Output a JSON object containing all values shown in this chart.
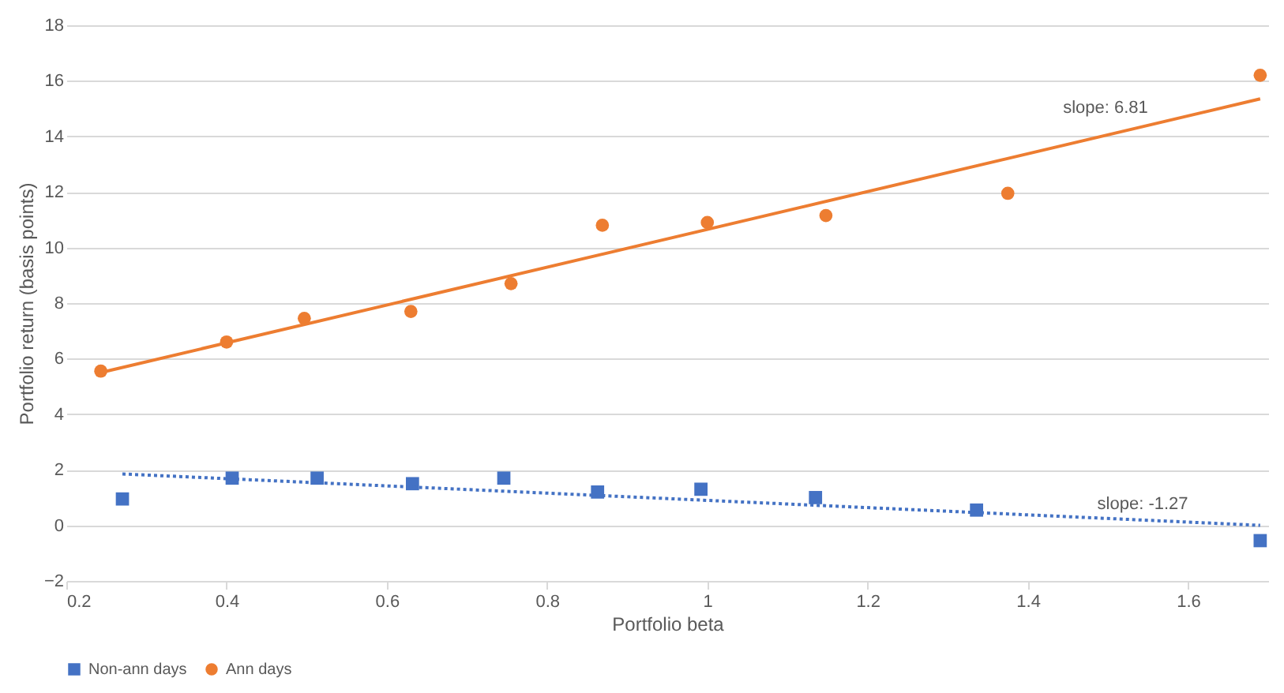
{
  "chart_data": {
    "type": "scatter",
    "xlabel": "Portfolio beta",
    "ylabel": "Portfolio return (basis points)",
    "xlim": [
      0.2,
      1.7
    ],
    "xticks": [
      0.2,
      0.4,
      0.6,
      0.8,
      1,
      1.2,
      1.4,
      1.6
    ],
    "ylim": [
      -2,
      18
    ],
    "yticks": [
      -2,
      0,
      2,
      4,
      6,
      8,
      10,
      12,
      14,
      16,
      18
    ],
    "grid": "y",
    "legend": "bottom",
    "series": [
      {
        "name": "Non-ann days",
        "color": "#4472c4",
        "marker": "square",
        "x": [
          0.27,
          0.407,
          0.513,
          0.632,
          0.746,
          0.863,
          0.992,
          1.135,
          1.336,
          1.69
        ],
        "values": [
          0.95,
          1.7,
          1.7,
          1.5,
          1.7,
          1.2,
          1.3,
          1.0,
          0.55,
          -0.55
        ]
      },
      {
        "name": "Ann days",
        "color": "#ed7d31",
        "marker": "circle",
        "x": [
          0.243,
          0.4,
          0.497,
          0.63,
          0.755,
          0.869,
          1.0,
          1.148,
          1.375,
          1.69
        ],
        "values": [
          5.55,
          6.6,
          7.45,
          7.7,
          8.7,
          10.8,
          10.9,
          11.15,
          11.95,
          16.2
        ]
      },
      {
        "type": "line",
        "color": "#4472c4",
        "line_style": "dotted",
        "x": [
          0.27,
          1.69
        ],
        "values": [
          1.85,
          0.0
        ]
      },
      {
        "type": "line",
        "color": "#ed7d31",
        "line_style": "solid",
        "x": [
          0.243,
          1.69
        ],
        "values": [
          5.5,
          15.35
        ]
      }
    ],
    "annotations": [
      {
        "text": "slope: 6.81",
        "x": 1.55,
        "y": 14.4
      },
      {
        "text": "slope: -1.27",
        "x": 1.6,
        "y": 0.12
      }
    ]
  }
}
